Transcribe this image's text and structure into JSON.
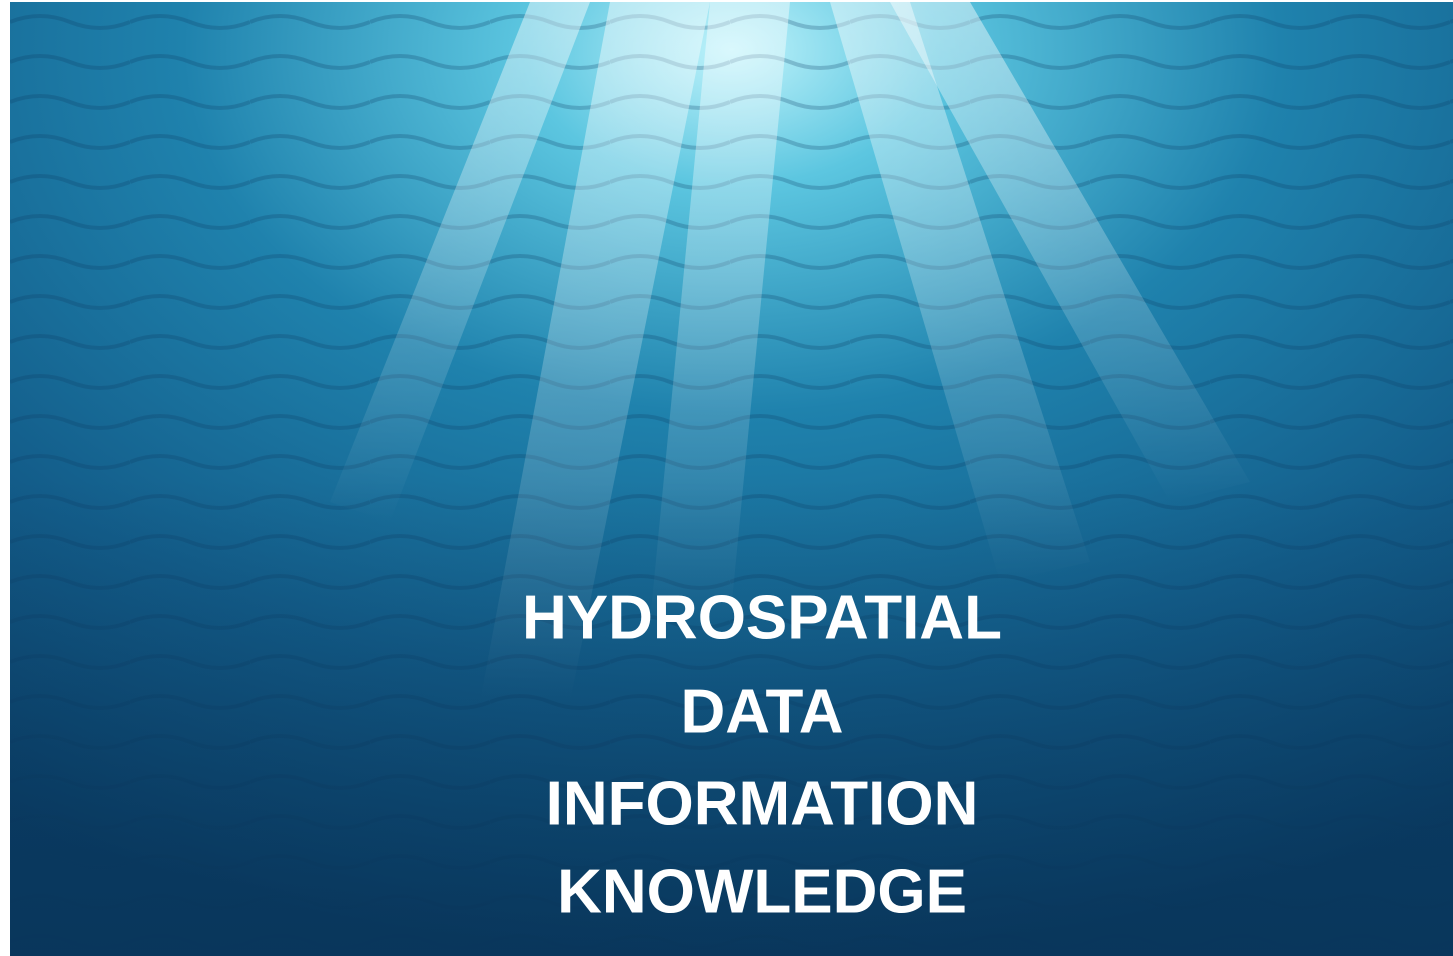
{
  "slide": {
    "lines": [
      "HYDROSPATIAL",
      "DATA",
      "INFORMATION",
      "KNOWLEDGE"
    ]
  }
}
